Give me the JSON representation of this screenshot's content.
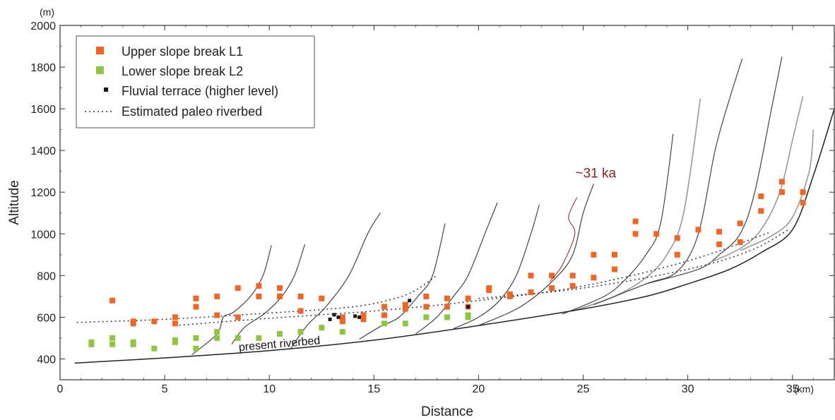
{
  "chart_data": {
    "type": "scatter",
    "xlabel": "Distance",
    "ylabel": "Altitude",
    "x_unit": "(km)",
    "y_unit": "(m)",
    "xlim": [
      0,
      37
    ],
    "ylim": [
      300,
      2000
    ],
    "x_ticks": [
      0,
      5,
      10,
      15,
      20,
      25,
      30,
      35
    ],
    "y_ticks": [
      400,
      600,
      800,
      1000,
      1200,
      1400,
      1600,
      1800,
      2000
    ],
    "legend_position": "top-left",
    "colors": {
      "upper": "#f26522",
      "lower": "#8dc63f",
      "terrace": "#1a1a1a",
      "profile": "#444444",
      "profile_light": "#999999",
      "annotation": "#9b1b1b"
    },
    "legend": [
      {
        "key": "upper",
        "label": "Upper slope break L1",
        "symbol": "square"
      },
      {
        "key": "lower",
        "label": "Lower slope break L2",
        "symbol": "square"
      },
      {
        "key": "terrace",
        "label": "Fluvial terrace (higher level)",
        "symbol": "small-square"
      },
      {
        "key": "paleo",
        "label": "Estimated paleo riverbed",
        "symbol": "dotted-line"
      }
    ],
    "series": [
      {
        "name": "Upper slope break L1",
        "key": "upper",
        "points": [
          [
            2.5,
            680
          ],
          [
            3.5,
            580
          ],
          [
            3.5,
            570
          ],
          [
            4.5,
            580
          ],
          [
            5.5,
            600
          ],
          [
            5.5,
            570
          ],
          [
            6.5,
            690
          ],
          [
            6.5,
            650
          ],
          [
            7.5,
            700
          ],
          [
            7.5,
            610
          ],
          [
            8.5,
            740
          ],
          [
            8.5,
            600
          ],
          [
            9.5,
            750
          ],
          [
            9.5,
            700
          ],
          [
            10.5,
            740
          ],
          [
            10.5,
            700
          ],
          [
            11.5,
            700
          ],
          [
            11.5,
            630
          ],
          [
            12.5,
            690
          ],
          [
            13.5,
            600
          ],
          [
            13.5,
            580
          ],
          [
            14.5,
            610
          ],
          [
            14.5,
            590
          ],
          [
            15.5,
            650
          ],
          [
            15.5,
            610
          ],
          [
            16.5,
            660
          ],
          [
            16.5,
            640
          ],
          [
            17.5,
            700
          ],
          [
            17.5,
            650
          ],
          [
            18.5,
            690
          ],
          [
            18.5,
            650
          ],
          [
            19.5,
            690
          ],
          [
            19.5,
            650
          ],
          [
            20.5,
            740
          ],
          [
            20.5,
            730
          ],
          [
            21.5,
            710
          ],
          [
            21.5,
            700
          ],
          [
            22.5,
            800
          ],
          [
            22.5,
            720
          ],
          [
            23.5,
            800
          ],
          [
            23.5,
            740
          ],
          [
            24.5,
            800
          ],
          [
            24.5,
            750
          ],
          [
            25.5,
            900
          ],
          [
            25.5,
            790
          ],
          [
            26.5,
            900
          ],
          [
            26.5,
            830
          ],
          [
            27.5,
            1060
          ],
          [
            27.5,
            1000
          ],
          [
            28.5,
            1000
          ],
          [
            29.5,
            980
          ],
          [
            29.5,
            900
          ],
          [
            30.5,
            1020
          ],
          [
            31.5,
            1010
          ],
          [
            31.5,
            950
          ],
          [
            32.5,
            1050
          ],
          [
            32.5,
            960
          ],
          [
            33.5,
            1180
          ],
          [
            33.5,
            1110
          ],
          [
            34.5,
            1250
          ],
          [
            34.5,
            1200
          ],
          [
            35.5,
            1200
          ],
          [
            35.5,
            1150
          ]
        ]
      },
      {
        "name": "Lower slope break L2",
        "key": "lower",
        "points": [
          [
            1.5,
            480
          ],
          [
            1.5,
            470
          ],
          [
            2.5,
            500
          ],
          [
            2.5,
            470
          ],
          [
            3.5,
            480
          ],
          [
            3.5,
            470
          ],
          [
            4.5,
            450
          ],
          [
            5.5,
            490
          ],
          [
            5.5,
            480
          ],
          [
            6.5,
            500
          ],
          [
            6.5,
            450
          ],
          [
            7.5,
            530
          ],
          [
            7.5,
            500
          ],
          [
            8.5,
            500
          ],
          [
            9.5,
            500
          ],
          [
            10.5,
            520
          ],
          [
            11.5,
            530
          ],
          [
            12.5,
            550
          ],
          [
            13.5,
            530
          ],
          [
            15.5,
            570
          ],
          [
            16.5,
            570
          ],
          [
            17.5,
            600
          ],
          [
            18.5,
            600
          ],
          [
            19.5,
            610
          ],
          [
            19.5,
            600
          ]
        ]
      },
      {
        "name": "Fluvial terrace (higher level)",
        "key": "terrace",
        "points": [
          [
            12.9,
            590
          ],
          [
            13.1,
            612
          ],
          [
            13.3,
            600
          ],
          [
            14.1,
            605
          ],
          [
            14.3,
            600
          ],
          [
            16.7,
            680
          ],
          [
            19.5,
            650
          ]
        ]
      }
    ],
    "paleo_riverbeds": [
      [
        [
          0.8,
          575
        ],
        [
          5,
          590
        ],
        [
          10,
          620
        ],
        [
          14,
          650
        ],
        [
          16,
          690
        ],
        [
          17,
          730
        ],
        [
          18,
          800
        ]
      ],
      [
        [
          5.5,
          560
        ],
        [
          10,
          595
        ],
        [
          15,
          630
        ],
        [
          20,
          680
        ],
        [
          25,
          750
        ],
        [
          30,
          870
        ],
        [
          34,
          1010
        ]
      ],
      [
        [
          20,
          690
        ],
        [
          25,
          740
        ],
        [
          30,
          830
        ],
        [
          33,
          920
        ],
        [
          34.8,
          1020
        ]
      ]
    ],
    "present_riverbed": [
      [
        0.7,
        380
      ],
      [
        5,
        405
      ],
      [
        10,
        440
      ],
      [
        15,
        490
      ],
      [
        20,
        560
      ],
      [
        25,
        640
      ],
      [
        28,
        700
      ],
      [
        30,
        760
      ],
      [
        32,
        830
      ],
      [
        33.5,
        910
      ],
      [
        35,
        1020
      ],
      [
        36,
        1280
      ],
      [
        37,
        1600
      ]
    ],
    "tributary_profiles": [
      [
        [
          6.3,
          420
        ],
        [
          7.5,
          520
        ],
        [
          7.8,
          600
        ],
        [
          8.3,
          625
        ],
        [
          9.1,
          700
        ],
        [
          9.7,
          800
        ],
        [
          10.1,
          945
        ]
      ],
      [
        [
          8.2,
          470
        ],
        [
          8.8,
          550
        ],
        [
          9.8,
          620
        ],
        [
          10.6,
          700
        ],
        [
          11.2,
          800
        ],
        [
          11.7,
          950
        ]
      ],
      [
        [
          11.0,
          445
        ],
        [
          11.8,
          560
        ],
        [
          12.7,
          650
        ],
        [
          13.8,
          800
        ],
        [
          14.7,
          1000
        ],
        [
          15.3,
          1100
        ]
      ],
      [
        [
          14.3,
          495
        ],
        [
          15.3,
          555
        ],
        [
          16.2,
          600
        ],
        [
          17.1,
          700
        ],
        [
          17.8,
          800
        ],
        [
          18.4,
          1050
        ]
      ],
      [
        [
          17.0,
          520
        ],
        [
          18.0,
          600
        ],
        [
          18.8,
          700
        ],
        [
          19.5,
          800
        ],
        [
          20.3,
          1000
        ],
        [
          20.9,
          1150
        ]
      ],
      [
        [
          18.8,
          545
        ],
        [
          20.0,
          600
        ],
        [
          21.0,
          680
        ],
        [
          21.8,
          800
        ],
        [
          22.5,
          1000
        ],
        [
          22.9,
          1140
        ]
      ],
      [
        [
          20.0,
          560
        ],
        [
          22.0,
          650
        ],
        [
          23.6,
          780
        ],
        [
          24.5,
          900
        ],
        [
          25.0,
          1100
        ],
        [
          25.5,
          1240
        ]
      ],
      [
        [
          24.0,
          615
        ],
        [
          26.0,
          700
        ],
        [
          27.0,
          780
        ],
        [
          28.0,
          900
        ],
        [
          28.7,
          1050
        ],
        [
          29.3,
          1480
        ]
      ],
      [
        [
          24.5,
          630
        ],
        [
          26.5,
          700
        ],
        [
          28.0,
          790
        ],
        [
          29.0,
          900
        ],
        [
          29.8,
          1100
        ],
        [
          30.6,
          1650
        ]
      ],
      [
        [
          25.5,
          660
        ],
        [
          28.0,
          760
        ],
        [
          29.5,
          820
        ],
        [
          30.5,
          1000
        ],
        [
          31.3,
          1400
        ],
        [
          32.0,
          1650
        ],
        [
          32.6,
          1840
        ]
      ],
      [
        [
          28.0,
          760
        ],
        [
          30.5,
          830
        ],
        [
          31.5,
          900
        ],
        [
          32.5,
          1000
        ],
        [
          33.2,
          1200
        ],
        [
          34.0,
          1600
        ],
        [
          34.5,
          1850
        ]
      ],
      [
        [
          31.0,
          860
        ],
        [
          32.5,
          930
        ],
        [
          33.5,
          1020
        ],
        [
          34.4,
          1200
        ],
        [
          35.0,
          1450
        ],
        [
          35.5,
          1660
        ]
      ],
      [
        [
          32.5,
          920
        ],
        [
          34.0,
          990
        ],
        [
          35.0,
          1080
        ],
        [
          35.8,
          1300
        ],
        [
          36.0,
          1500
        ]
      ]
    ],
    "annotations": [
      {
        "text": "~31 ka",
        "x": 25.6,
        "y": 1270,
        "color": "#9b1b1b"
      },
      {
        "text": "present riverbed",
        "x": 10.5,
        "y": 455,
        "angle": -5
      }
    ],
    "annotation_leader": [
      [
        24.7,
        1175
      ],
      [
        24.3,
        1080
      ],
      [
        24.6,
        1000
      ],
      [
        24.0,
        850
      ],
      [
        23.4,
        770
      ]
    ]
  }
}
